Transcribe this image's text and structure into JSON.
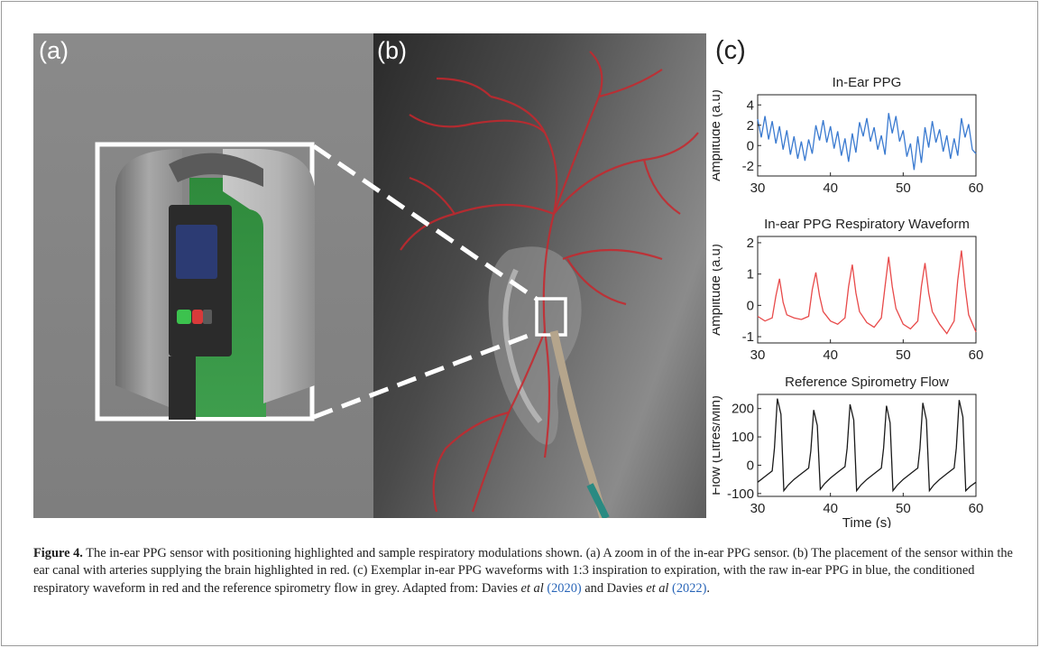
{
  "figure": {
    "panel_labels": {
      "a": "(a)",
      "b": "(b)",
      "c": "(c)"
    },
    "caption": {
      "figure_number": "Figure 4.",
      "text_1": " The in-ear PPG sensor with positioning highlighted and sample respiratory modulations shown. (a) A zoom in of the in-ear PPG sensor. (b) The placement of the sensor within the ear canal with arteries supplying the brain highlighted in red. (c) Exemplar in-ear PPG waveforms with 1:3 inspiration to expiration, with the raw in-ear PPG in blue, the conditioned respiratory waveform in red and the reference spirometry flow in grey. Adapted from: Davies ",
      "etal_1": "et al",
      "cite_1": "(2020)",
      "text_2": " and Davies ",
      "etal_2": "et al",
      "cite_2": "(2022)",
      "text_3": "."
    }
  },
  "chart_data": [
    {
      "type": "line",
      "title": "In-Ear PPG",
      "xlabel": "",
      "ylabel": "Amplitude (a.u)",
      "xlim": [
        30,
        60
      ],
      "ylim": [
        -3,
        5
      ],
      "xticks": [
        30,
        40,
        50,
        60
      ],
      "yticks": [
        -2,
        0,
        2,
        4
      ],
      "color": "#3a7ad0",
      "series": [
        {
          "x": [
            30,
            30.5,
            31,
            31.5,
            32,
            32.5,
            33,
            33.5,
            34,
            34.5,
            35,
            35.5,
            36,
            36.5,
            37,
            37.5,
            38,
            38.5,
            39,
            39.5,
            40,
            40.5,
            41,
            41.5,
            42,
            42.5,
            43,
            43.5,
            44,
            44.5,
            45,
            45.5,
            46,
            46.5,
            47,
            47.5,
            48,
            48.5,
            49,
            49.5,
            50,
            50.5,
            51,
            51.5,
            52,
            52.5,
            53,
            53.5,
            54,
            54.5,
            55,
            55.5,
            56,
            56.5,
            57,
            57.5,
            58,
            58.5,
            59,
            59.5,
            60
          ],
          "y": [
            2.6,
            0.8,
            2.9,
            0.6,
            2.4,
            0.2,
            1.9,
            -0.4,
            1.5,
            -0.9,
            0.9,
            -1.3,
            0.4,
            -1.5,
            0.6,
            -0.8,
            2.0,
            0.5,
            2.5,
            0.3,
            1.9,
            -0.3,
            1.4,
            -1.0,
            0.7,
            -1.6,
            1.2,
            -0.7,
            2.3,
            0.9,
            2.7,
            0.4,
            1.8,
            -0.4,
            1.0,
            -0.9,
            3.2,
            1.2,
            2.9,
            0.4,
            1.5,
            -1.1,
            0.2,
            -2.4,
            0.9,
            -1.7,
            1.8,
            -0.2,
            2.4,
            0.3,
            1.6,
            -0.6,
            1.0,
            -1.3,
            0.7,
            -1.0,
            2.7,
            0.8,
            2.1,
            -0.4,
            -0.8
          ]
        }
      ]
    },
    {
      "type": "line",
      "title": "In-ear PPG Respiratory Waveform",
      "xlabel": "",
      "ylabel": "Amplitude (a.u)",
      "xlim": [
        30,
        60
      ],
      "ylim": [
        -1.2,
        2.2
      ],
      "xticks": [
        30,
        40,
        50,
        60
      ],
      "yticks": [
        -1,
        0,
        1,
        2
      ],
      "color": "#e84a4a",
      "series": [
        {
          "x": [
            30,
            31,
            32,
            32.5,
            33,
            33.5,
            34,
            35,
            36,
            37,
            37.5,
            38,
            38.5,
            39,
            40,
            41,
            42,
            42.5,
            43,
            43.5,
            44,
            45,
            46,
            47,
            47.5,
            48,
            48.5,
            49,
            50,
            51,
            52,
            52.5,
            53,
            53.5,
            54,
            55,
            56,
            57,
            57.5,
            58,
            58.5,
            59,
            60
          ],
          "y": [
            -0.35,
            -0.5,
            -0.4,
            0.3,
            0.85,
            0.1,
            -0.3,
            -0.4,
            -0.45,
            -0.35,
            0.5,
            1.05,
            0.3,
            -0.2,
            -0.5,
            -0.6,
            -0.4,
            0.6,
            1.3,
            0.4,
            -0.2,
            -0.55,
            -0.7,
            -0.4,
            0.6,
            1.55,
            0.6,
            -0.1,
            -0.6,
            -0.75,
            -0.5,
            0.6,
            1.35,
            0.4,
            -0.2,
            -0.6,
            -0.9,
            -0.5,
            0.8,
            1.75,
            0.6,
            -0.3,
            -0.85
          ]
        }
      ]
    },
    {
      "type": "line",
      "title": "Reference Spirometry Flow",
      "xlabel": "Time (s)",
      "ylabel": "Flow (Litres/Min)",
      "xlim": [
        30,
        60
      ],
      "ylim": [
        -110,
        250
      ],
      "xticks": [
        30,
        40,
        50,
        60
      ],
      "yticks": [
        -100,
        0,
        100,
        200
      ],
      "color": "#1a1a1a",
      "series": [
        {
          "x": [
            30,
            31,
            32,
            32.3,
            32.7,
            33.2,
            33.6,
            34.2,
            35,
            36,
            37,
            37.3,
            37.7,
            38.2,
            38.6,
            39.2,
            40,
            41,
            42,
            42.3,
            42.7,
            43.2,
            43.6,
            44.2,
            45,
            46,
            47,
            47.3,
            47.7,
            48.2,
            48.6,
            49.2,
            50,
            51,
            52,
            52.3,
            52.7,
            53.2,
            53.6,
            54.2,
            55,
            56,
            57,
            57.3,
            57.7,
            58.2,
            58.6,
            59.2,
            60
          ],
          "y": [
            -60,
            -40,
            -20,
            60,
            235,
            180,
            -90,
            -70,
            -50,
            -30,
            -10,
            50,
            195,
            140,
            -85,
            -65,
            -45,
            -25,
            -5,
            60,
            215,
            160,
            -90,
            -70,
            -50,
            -30,
            -10,
            60,
            210,
            150,
            -90,
            -70,
            -50,
            -30,
            -10,
            60,
            220,
            160,
            -90,
            -70,
            -50,
            -30,
            -10,
            60,
            230,
            170,
            -90,
            -75,
            -60
          ]
        }
      ]
    }
  ]
}
